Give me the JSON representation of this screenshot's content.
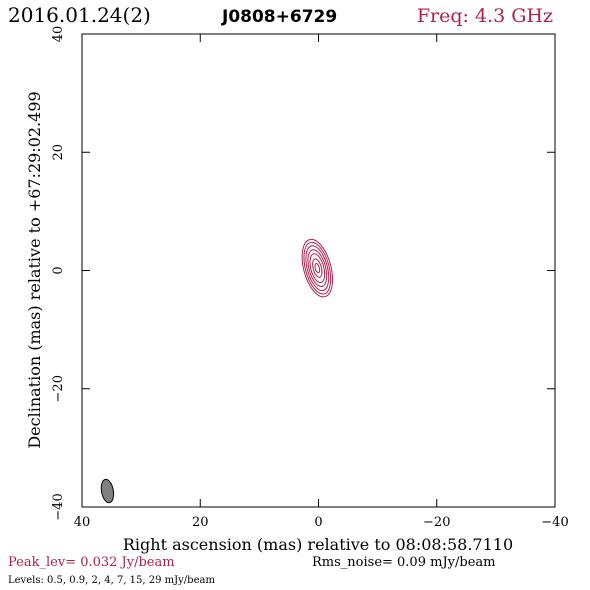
{
  "header": {
    "date": "2016.01.24(2)",
    "source": "J0808+6729",
    "freq": "Freq: 4.3 GHz"
  },
  "footer": {
    "peak": "Peak_lev=  0.032 Jy/beam",
    "rms": "Rms_noise= 0.09 mJy/beam",
    "levels": "Levels: 0.5, 0.9,   2,   4,   7,  15,  29 mJy/beam"
  },
  "colors": {
    "contour": "#b0204a",
    "accent_text": "#b0204a",
    "beam_fill": "#808080",
    "axis": "#000000"
  },
  "chart_data": {
    "type": "contour",
    "xlabel": "Right ascension (mas) relative to 08:08:58.7110",
    "ylabel": "Declination (mas) relative to +67:29:02.499",
    "xlim": [
      40,
      -40
    ],
    "ylim": [
      -40,
      40
    ],
    "x_ticks": [
      40,
      20,
      0,
      -20,
      -40
    ],
    "y_ticks": [
      -40,
      -20,
      0,
      20,
      40
    ],
    "x_tick_labels": [
      "40",
      "20",
      "0",
      "−20",
      "−40"
    ],
    "y_tick_labels": [
      "−40",
      "−20",
      "0",
      "20",
      "40"
    ],
    "levels_mJy": [
      0.5,
      0.9,
      2,
      4,
      7,
      15,
      29
    ],
    "peak_Jy_per_beam": 0.032,
    "source_center": [
      0.2,
      0.4
    ],
    "contours": [
      {
        "level": 0.5,
        "rx": 2.3,
        "ry": 5.0
      },
      {
        "level": 0.9,
        "rx": 2.0,
        "ry": 4.5
      },
      {
        "level": 2,
        "rx": 1.7,
        "ry": 3.9
      },
      {
        "level": 4,
        "rx": 1.4,
        "ry": 3.2
      },
      {
        "level": 7,
        "rx": 1.1,
        "ry": 2.5
      },
      {
        "level": 15,
        "rx": 0.7,
        "ry": 1.6
      },
      {
        "level": 29,
        "rx": 0.35,
        "ry": 0.8
      }
    ],
    "contour_tilt_deg": -15,
    "beam": {
      "x": 35.7,
      "y": -37.3,
      "major": 4.0,
      "minor": 2.0,
      "pa_deg": -10
    }
  }
}
